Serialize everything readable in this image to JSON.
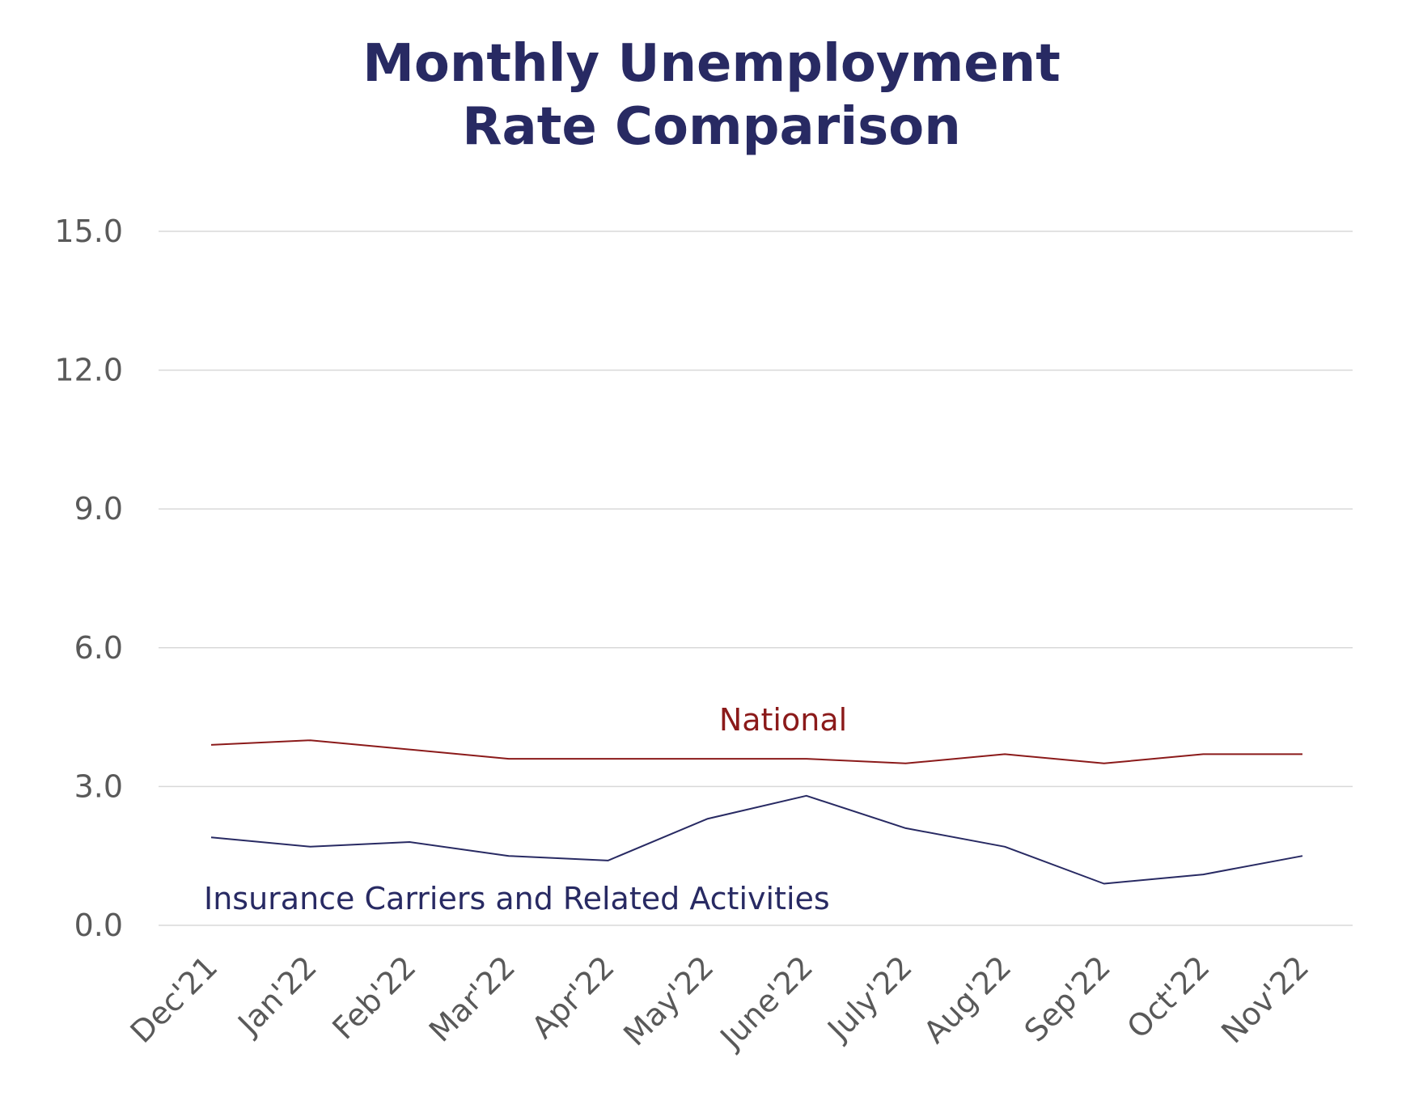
{
  "chart_data": {
    "type": "line",
    "title_line1": "Monthly Unemployment",
    "title_line2": "Rate Comparison",
    "xlabel": "",
    "ylabel": "",
    "categories": [
      "Dec'21",
      "Jan'22",
      "Feb'22",
      "Mar'22",
      "Apr'22",
      "May'22",
      "June'22",
      "July'22",
      "Aug'22",
      "Sep'22",
      "Oct'22",
      "Nov'22"
    ],
    "ylim": [
      0,
      15
    ],
    "yticks": [
      0,
      3,
      6,
      9,
      12,
      15
    ],
    "ytick_labels": [
      "0.0",
      "3.0",
      "6.0",
      "9.0",
      "12.0",
      "15.0"
    ],
    "grid": true,
    "legend": "none",
    "series": [
      {
        "name": "National",
        "color": "#8b1a1a",
        "values": [
          3.9,
          4.0,
          3.8,
          3.6,
          3.6,
          3.6,
          3.6,
          3.5,
          3.7,
          3.5,
          3.7,
          3.7
        ]
      },
      {
        "name": "Insurance Carriers and Related Activities",
        "color": "#282a63",
        "values": [
          1.9,
          1.7,
          1.8,
          1.5,
          1.4,
          2.3,
          2.8,
          2.1,
          1.7,
          0.9,
          1.1,
          1.5
        ]
      }
    ],
    "colors": {
      "title": "#282a63",
      "gridline": "#d9d9d9",
      "tick_text": "#595959"
    }
  }
}
